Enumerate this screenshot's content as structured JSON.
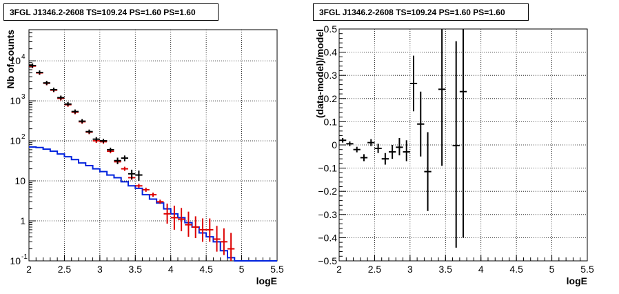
{
  "chart_data": [
    {
      "type": "line",
      "title": "3FGL J1346.2-2608 TS=109.24 PS=1.60 PS=1.60",
      "xlabel": "logE",
      "ylabel": "Nb of counts",
      "xlim": [
        2,
        5.5
      ],
      "ylim": [
        0.1,
        60000
      ],
      "yscale": "log",
      "grid": true,
      "x_ticks": [
        "2",
        "2.5",
        "3",
        "3.5",
        "4",
        "4.5",
        "5",
        "5.5"
      ],
      "y_ticks": [
        {
          "v": 0.1,
          "label": "10",
          "exp": "-1"
        },
        {
          "v": 1,
          "label": "1",
          "exp": ""
        },
        {
          "v": 10,
          "label": "10",
          "exp": ""
        },
        {
          "v": 100,
          "label": "10",
          "exp": "2"
        },
        {
          "v": 1000,
          "label": "10",
          "exp": "3"
        },
        {
          "v": 10000,
          "label": "10",
          "exp": "4"
        }
      ],
      "series": [
        {
          "color": "#000000",
          "x": [
            2.05,
            2.15,
            2.25,
            2.35,
            2.45,
            2.55,
            2.65,
            2.75,
            2.85,
            2.95,
            3.05,
            3.15,
            3.25,
            3.35,
            3.45,
            3.55
          ],
          "y": [
            7600,
            5100,
            2800,
            1900,
            1200,
            830,
            540,
            310,
            170,
            110,
            100,
            60,
            32,
            37,
            15,
            14
          ],
          "yerr": [
            0,
            0,
            0,
            0,
            0,
            0,
            0,
            0,
            0,
            0,
            0,
            0,
            6,
            6,
            4,
            4
          ]
        },
        {
          "color": "#dd0000",
          "x": [
            2.05,
            2.15,
            2.25,
            2.35,
            2.45,
            2.55,
            2.65,
            2.75,
            2.85,
            2.95,
            3.05,
            3.15,
            3.25,
            3.35,
            3.45,
            3.55,
            3.65,
            3.75,
            3.85,
            3.95,
            4.05,
            4.15,
            4.25,
            4.35,
            4.45,
            4.55,
            4.65,
            4.75,
            4.85
          ],
          "y": [
            7400,
            5000,
            2750,
            1850,
            1150,
            800,
            520,
            300,
            165,
            100,
            95,
            55,
            30,
            20,
            12,
            7.5,
            6,
            4.5,
            3,
            1.5,
            1.2,
            1.1,
            0.8,
            0.7,
            0.6,
            0.6,
            0.35,
            0.3,
            0.2
          ],
          "yerr_low": [
            0,
            0,
            0,
            0,
            0,
            0,
            0,
            0,
            0,
            0,
            0,
            0,
            0,
            0,
            0,
            0,
            0,
            0,
            0,
            0.65,
            0.6,
            0.55,
            0.4,
            0.33,
            0.3,
            0.3,
            0.18,
            0.16,
            0.1
          ],
          "yerr_high": [
            0,
            0,
            0,
            0,
            0,
            0,
            0,
            0,
            0,
            0,
            0,
            0,
            0,
            0,
            0,
            0,
            0,
            0,
            0,
            1.2,
            1.2,
            1.0,
            0.9,
            0.6,
            0.55,
            0.55,
            0.4,
            0.35,
            0.3
          ]
        },
        {
          "color": "#0022dd",
          "step": true,
          "x": [
            2.0,
            2.1,
            2.2,
            2.3,
            2.4,
            2.5,
            2.6,
            2.7,
            2.8,
            2.9,
            3.0,
            3.1,
            3.2,
            3.3,
            3.4,
            3.5,
            3.6,
            3.7,
            3.8,
            3.9,
            4.0,
            4.1,
            4.2,
            4.3,
            4.4,
            4.5,
            4.6,
            4.7,
            4.8,
            4.9
          ],
          "y": [
            70,
            68,
            62,
            55,
            47,
            40,
            34,
            28,
            24,
            20,
            17,
            14,
            12,
            9.5,
            7.5,
            6.5,
            4.5,
            3.5,
            2.8,
            2.0,
            1.5,
            1.2,
            0.9,
            0.7,
            0.5,
            0.4,
            0.3,
            0.18,
            0.12,
            0.1
          ],
          "x_end": 5.5
        }
      ]
    },
    {
      "type": "scatter",
      "title": "3FGL J1346.2-2608 TS=109.24 PS=1.60 PS=1.60",
      "xlabel": "logE",
      "ylabel": "(data-model)/model",
      "xlim": [
        2,
        5.5
      ],
      "ylim": [
        -0.5,
        0.5
      ],
      "grid": true,
      "x_ticks": [
        "2",
        "2.5",
        "3",
        "3.5",
        "4",
        "4.5",
        "5",
        "5.5"
      ],
      "y_ticks": [
        "−0.5",
        "−0.4",
        "−0.3",
        "−0.2",
        "−0.1",
        "0",
        "0.1",
        "0.2",
        "0.3",
        "0.4",
        "0.5"
      ],
      "points": {
        "x": [
          2.05,
          2.15,
          2.25,
          2.35,
          2.45,
          2.55,
          2.65,
          2.75,
          2.85,
          2.95,
          3.05,
          3.15,
          3.25,
          3.45,
          3.65,
          3.75
        ],
        "y": [
          0.02,
          0.005,
          -0.02,
          -0.055,
          0.01,
          -0.015,
          -0.06,
          -0.03,
          -0.01,
          -0.03,
          0.265,
          0.09,
          -0.115,
          0.24,
          -0.003,
          0.23
        ],
        "err_low": [
          0.01,
          0.01,
          0.012,
          0.015,
          0.015,
          0.02,
          0.025,
          0.03,
          0.035,
          0.04,
          0.12,
          0.14,
          0.17,
          0.33,
          0.44,
          0.63
        ],
        "err_high": [
          0.01,
          0.01,
          0.012,
          0.015,
          0.015,
          0.02,
          0.025,
          0.03,
          0.04,
          0.05,
          0.12,
          0.14,
          0.17,
          0.26,
          0.45,
          0.27
        ]
      }
    }
  ]
}
